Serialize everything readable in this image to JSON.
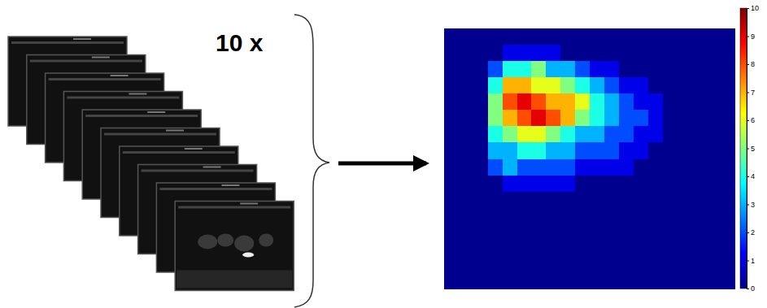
{
  "label": "10 x",
  "chart_data": {
    "type": "heatmap",
    "tick_labels": false,
    "cells": [
      [
        0,
        0,
        0,
        0,
        0,
        0,
        0,
        0,
        0,
        0,
        0,
        0,
        0,
        0,
        0,
        0,
        0,
        0,
        0,
        0
      ],
      [
        0,
        0,
        0,
        0,
        1,
        1,
        1,
        1,
        0,
        0,
        0,
        0,
        0,
        0,
        0,
        0,
        0,
        0,
        0,
        0
      ],
      [
        0,
        0,
        0,
        2,
        4,
        4,
        5,
        3,
        3,
        2,
        1,
        1,
        0,
        0,
        0,
        0,
        0,
        0,
        0,
        0
      ],
      [
        0,
        0,
        0,
        4,
        7,
        7,
        6,
        6,
        5,
        4,
        3,
        2,
        1,
        1,
        0,
        0,
        0,
        0,
        0,
        0
      ],
      [
        0,
        0,
        0,
        5,
        8,
        9,
        8,
        7,
        7,
        6,
        4,
        3,
        2,
        1,
        1,
        0,
        0,
        0,
        0,
        0
      ],
      [
        0,
        0,
        0,
        5,
        7,
        8,
        9,
        8,
        7,
        5,
        4,
        3,
        2,
        2,
        1,
        0,
        0,
        0,
        0,
        0
      ],
      [
        0,
        0,
        0,
        4,
        5,
        6,
        6,
        5,
        4,
        3,
        3,
        2,
        2,
        1,
        1,
        0,
        0,
        0,
        0,
        0
      ],
      [
        0,
        0,
        0,
        3,
        3,
        4,
        4,
        3,
        3,
        2,
        2,
        2,
        1,
        1,
        0,
        0,
        0,
        0,
        0,
        0
      ],
      [
        0,
        0,
        0,
        2,
        3,
        2,
        2,
        2,
        2,
        1,
        1,
        1,
        1,
        0,
        0,
        0,
        0,
        0,
        0,
        0
      ],
      [
        0,
        0,
        0,
        0,
        1,
        1,
        1,
        1,
        1,
        0,
        0,
        0,
        0,
        0,
        0,
        0,
        0,
        0,
        0,
        0
      ],
      [
        0,
        0,
        0,
        0,
        0,
        0,
        0,
        0,
        0,
        0,
        0,
        0,
        0,
        0,
        0,
        0,
        0,
        0,
        0,
        0
      ],
      [
        0,
        0,
        0,
        0,
        0,
        0,
        0,
        0,
        0,
        0,
        0,
        0,
        0,
        0,
        0,
        0,
        0,
        0,
        0,
        0
      ],
      [
        0,
        0,
        0,
        0,
        0,
        0,
        0,
        0,
        0,
        0,
        0,
        0,
        0,
        0,
        0,
        0,
        0,
        0,
        0,
        0
      ],
      [
        0,
        0,
        0,
        0,
        0,
        0,
        0,
        0,
        0,
        0,
        0,
        0,
        0,
        0,
        0,
        0,
        0,
        0,
        0,
        0
      ],
      [
        0,
        0,
        0,
        0,
        0,
        0,
        0,
        0,
        0,
        0,
        0,
        0,
        0,
        0,
        0,
        0,
        0,
        0,
        0,
        0
      ],
      [
        0,
        0,
        0,
        0,
        0,
        0,
        0,
        0,
        0,
        0,
        0,
        0,
        0,
        0,
        0,
        0,
        0,
        0,
        0,
        0
      ]
    ],
    "color_range": [
      0,
      10
    ],
    "color_ticks": [
      0,
      1,
      2,
      3,
      4,
      5,
      6,
      7,
      8,
      9,
      10
    ]
  }
}
